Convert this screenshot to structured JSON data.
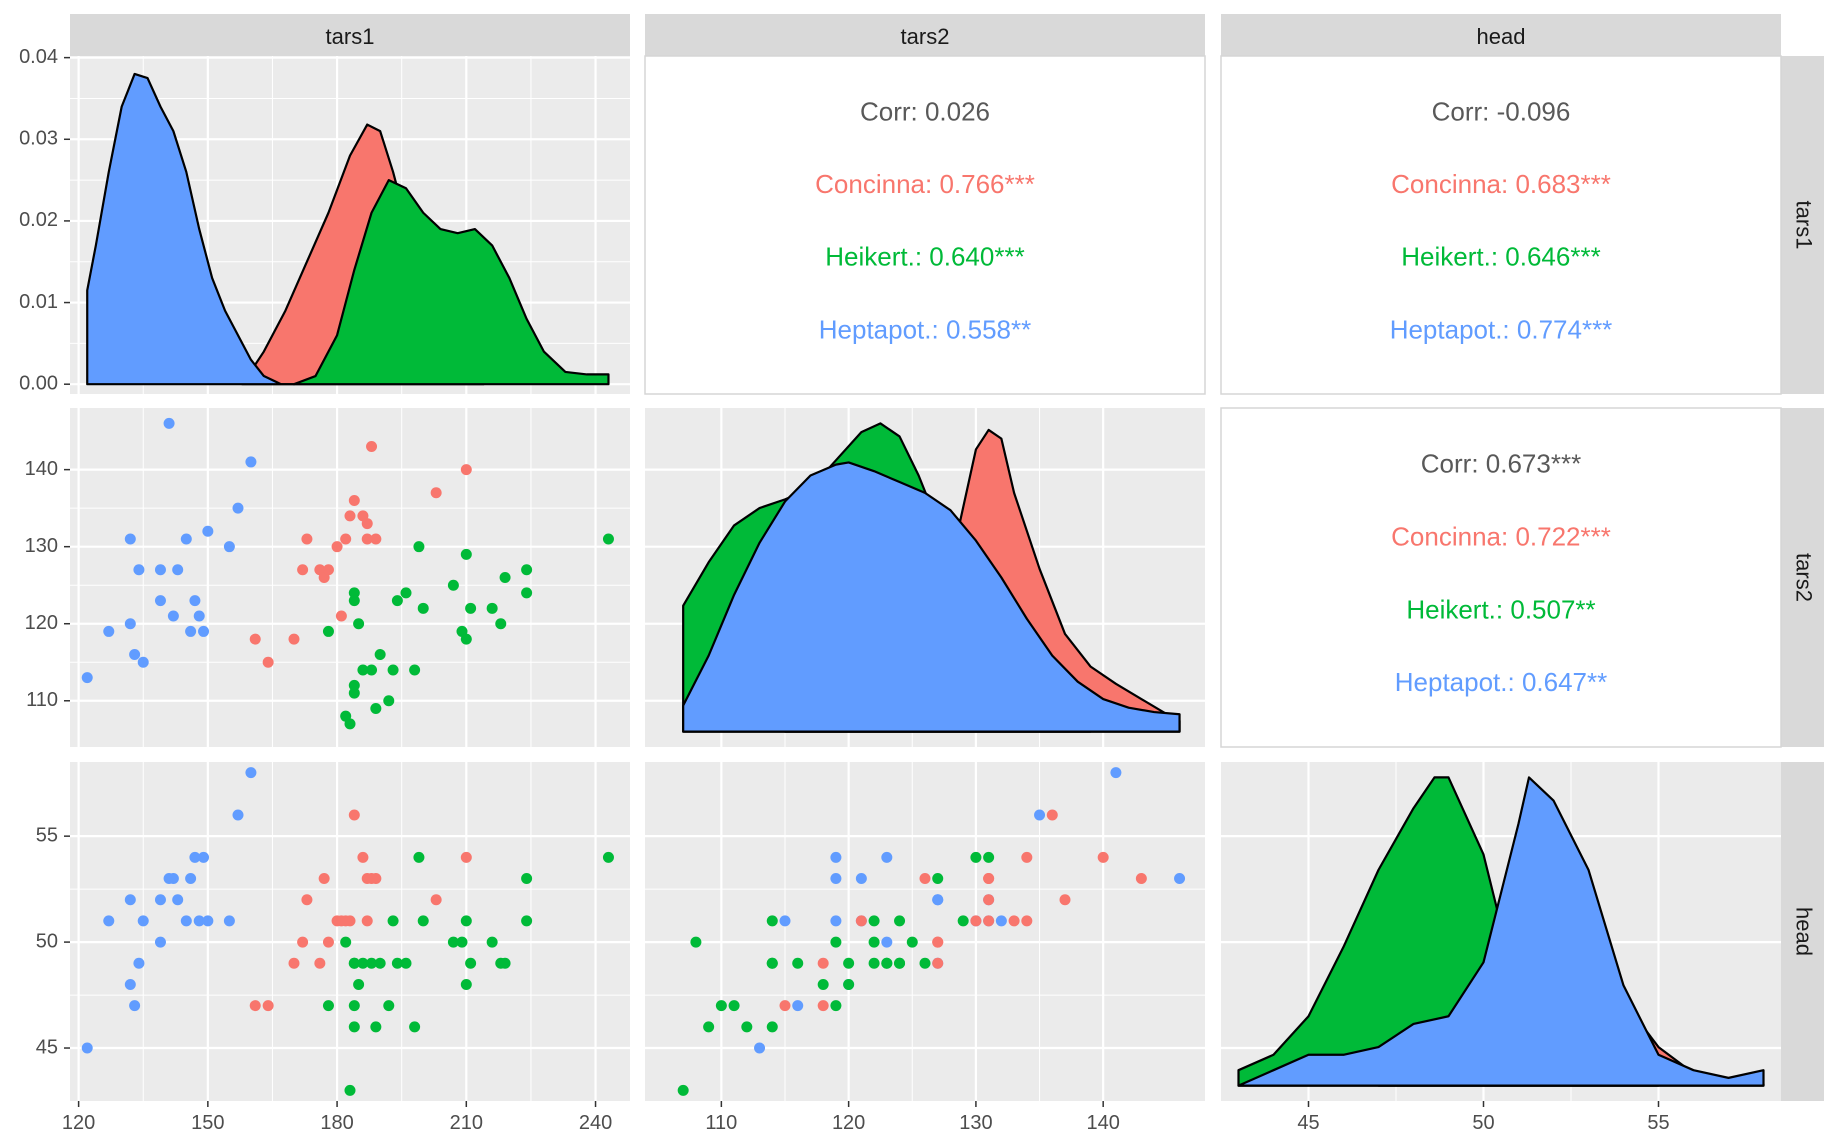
{
  "colors": {
    "concinna": "#F8766D",
    "heikert": "#00BA38",
    "heptapot": "#619CFF",
    "overall": "#595959",
    "panel_bg": "#EBEBEB",
    "strip_bg": "#D9D9D9",
    "grid": "#FFFFFF"
  },
  "chart_data": {
    "type": "scatter",
    "variables": [
      "tars1",
      "tars2",
      "head"
    ],
    "strips": {
      "top": [
        "tars1",
        "tars2",
        "head"
      ],
      "right": [
        "tars1",
        "tars2",
        "head"
      ]
    },
    "groups": [
      "Concinna",
      "Heikert.",
      "Heptapot."
    ],
    "axes": {
      "tars1": {
        "range": [
          118,
          248
        ],
        "ticks": [
          120,
          150,
          180,
          210,
          240
        ]
      },
      "tars2": {
        "range": [
          104,
          148
        ],
        "ticks": [
          110,
          120,
          130,
          140
        ]
      },
      "head": {
        "range": [
          42.5,
          58.5
        ],
        "ticks": [
          45,
          50,
          55
        ]
      }
    },
    "density_yaxis": {
      "range": [
        -0.0012,
        0.0402
      ],
      "ticks": [
        "0.00",
        "0.01",
        "0.02",
        "0.03",
        "0.04"
      ],
      "tick_values": [
        0,
        0.01,
        0.02,
        0.03,
        0.04
      ]
    },
    "correlations": [
      {
        "pair": [
          "tars1",
          "tars2"
        ],
        "lines": [
          {
            "text": "Corr: 0.026",
            "group": "overall"
          },
          {
            "text": "Concinna: 0.766***",
            "group": "concinna"
          },
          {
            "text": "Heikert.: 0.640***",
            "group": "heikert"
          },
          {
            "text": "Heptapot.: 0.558**",
            "group": "heptapot"
          }
        ]
      },
      {
        "pair": [
          "tars1",
          "head"
        ],
        "lines": [
          {
            "text": "Corr: -0.096",
            "group": "overall"
          },
          {
            "text": "Concinna: 0.683***",
            "group": "concinna"
          },
          {
            "text": "Heikert.: 0.646***",
            "group": "heikert"
          },
          {
            "text": "Heptapot.: 0.774***",
            "group": "heptapot"
          }
        ]
      },
      {
        "pair": [
          "tars2",
          "head"
        ],
        "lines": [
          {
            "text": "Corr: 0.673***",
            "group": "overall"
          },
          {
            "text": "Concinna: 0.722***",
            "group": "concinna"
          },
          {
            "text": "Heikert.: 0.507**",
            "group": "heikert"
          },
          {
            "text": "Heptapot.: 0.647**",
            "group": "heptapot"
          }
        ]
      }
    ],
    "densities": {
      "tars1": {
        "concinna": [
          [
            158,
            0
          ],
          [
            163,
            0.004
          ],
          [
            168,
            0.009
          ],
          [
            173,
            0.015
          ],
          [
            178,
            0.021
          ],
          [
            183,
            0.028
          ],
          [
            187,
            0.0318
          ],
          [
            190,
            0.031
          ],
          [
            193,
            0.026
          ],
          [
            196,
            0.02
          ],
          [
            200,
            0.012
          ],
          [
            205,
            0.006
          ],
          [
            210,
            0.002
          ],
          [
            214,
            0
          ]
        ],
        "heikert": [
          [
            170,
            0
          ],
          [
            175,
            0.001
          ],
          [
            180,
            0.006
          ],
          [
            184,
            0.014
          ],
          [
            188,
            0.021
          ],
          [
            192,
            0.025
          ],
          [
            196,
            0.024
          ],
          [
            200,
            0.021
          ],
          [
            204,
            0.019
          ],
          [
            208,
            0.0185
          ],
          [
            212,
            0.019
          ],
          [
            216,
            0.017
          ],
          [
            220,
            0.013
          ],
          [
            224,
            0.008
          ],
          [
            228,
            0.004
          ],
          [
            233,
            0.0015
          ],
          [
            238,
            0.0012
          ],
          [
            243,
            0.0012
          ]
        ],
        "heptapot": [
          [
            122,
            0.0115
          ],
          [
            124,
            0.017
          ],
          [
            127,
            0.026
          ],
          [
            130,
            0.034
          ],
          [
            133,
            0.038
          ],
          [
            136,
            0.0375
          ],
          [
            139,
            0.034
          ],
          [
            142,
            0.031
          ],
          [
            145,
            0.026
          ],
          [
            148,
            0.019
          ],
          [
            151,
            0.013
          ],
          [
            154,
            0.009
          ],
          [
            157,
            0.006
          ],
          [
            160,
            0.003
          ],
          [
            163,
            0.001
          ],
          [
            167,
            0
          ],
          [
            170,
            0
          ]
        ]
      },
      "tars2": {
        "concinna": [
          [
            115,
            0
          ],
          [
            118,
            0.002
          ],
          [
            121,
            0.004
          ],
          [
            124,
            0.0065
          ],
          [
            127,
            0.0075
          ],
          [
            128.5,
            0.009
          ],
          [
            130,
            0.013
          ],
          [
            131,
            0.0139
          ],
          [
            132,
            0.0135
          ],
          [
            133,
            0.011
          ],
          [
            135,
            0.0075
          ],
          [
            137,
            0.0045
          ],
          [
            139,
            0.003
          ],
          [
            141,
            0.0022
          ],
          [
            143,
            0.0015
          ],
          [
            145,
            0.0008
          ],
          [
            146,
            0.0005
          ]
        ],
        "heikert": [
          [
            107,
            0.0058
          ],
          [
            109,
            0.0078
          ],
          [
            111,
            0.0095
          ],
          [
            113,
            0.0103
          ],
          [
            115,
            0.0107
          ],
          [
            117,
            0.0112
          ],
          [
            119,
            0.0125
          ],
          [
            121,
            0.0138
          ],
          [
            122.5,
            0.0142
          ],
          [
            124,
            0.0136
          ],
          [
            125.5,
            0.0118
          ],
          [
            127,
            0.0096
          ],
          [
            129,
            0.0073
          ],
          [
            131,
            0.0052
          ],
          [
            133,
            0.0035
          ],
          [
            135,
            0.002
          ],
          [
            137,
            0.0009
          ],
          [
            139,
            0
          ]
        ],
        "heptapot": [
          [
            107,
            0.0012
          ],
          [
            109,
            0.0035
          ],
          [
            111,
            0.0063
          ],
          [
            113,
            0.0087
          ],
          [
            115,
            0.0106
          ],
          [
            117,
            0.0118
          ],
          [
            119,
            0.0123
          ],
          [
            120,
            0.0124
          ],
          [
            122,
            0.012
          ],
          [
            124,
            0.0115
          ],
          [
            126,
            0.011
          ],
          [
            128,
            0.0102
          ],
          [
            130,
            0.0088
          ],
          [
            132,
            0.0071
          ],
          [
            134,
            0.0052
          ],
          [
            136,
            0.0035
          ],
          [
            138,
            0.0023
          ],
          [
            140,
            0.0015
          ],
          [
            142,
            0.0011
          ],
          [
            144,
            0.0009
          ],
          [
            146,
            0.0008
          ]
        ]
      },
      "head": {
        "concinna": [
          [
            47,
            0
          ],
          [
            48,
            0.008
          ],
          [
            49,
            0.02
          ],
          [
            50,
            0.05
          ],
          [
            50.6,
            0.085
          ],
          [
            51,
            0.1
          ],
          [
            52,
            0.11
          ],
          [
            53,
            0.09
          ],
          [
            54,
            0.055
          ],
          [
            55,
            0.025
          ],
          [
            56,
            0.008
          ],
          [
            57,
            0.003
          ],
          [
            58,
            0.001
          ]
        ],
        "heikert": [
          [
            43,
            0.01
          ],
          [
            44,
            0.02
          ],
          [
            45,
            0.045
          ],
          [
            46,
            0.09
          ],
          [
            47,
            0.14
          ],
          [
            48,
            0.18
          ],
          [
            48.6,
            0.2
          ],
          [
            49,
            0.2
          ],
          [
            50,
            0.15
          ],
          [
            50.6,
            0.095
          ],
          [
            51,
            0.07
          ],
          [
            52,
            0.025
          ],
          [
            53,
            0.008
          ],
          [
            54,
            0.002
          ],
          [
            55,
            0
          ]
        ],
        "heptapot": [
          [
            43,
            0.0
          ],
          [
            44,
            0.01
          ],
          [
            45,
            0.02
          ],
          [
            46,
            0.02
          ],
          [
            47,
            0.025
          ],
          [
            48,
            0.04
          ],
          [
            49,
            0.045
          ],
          [
            50,
            0.08
          ],
          [
            51,
            0.17
          ],
          [
            51.3,
            0.2
          ],
          [
            52,
            0.185
          ],
          [
            53,
            0.14
          ],
          [
            54,
            0.065
          ],
          [
            55,
            0.02
          ],
          [
            56,
            0.01
          ],
          [
            57,
            0.005
          ],
          [
            58,
            0.01
          ]
        ]
      }
    },
    "points": [
      {
        "group": "heptapot",
        "tars1": 122,
        "tars2": 113,
        "head": 45
      },
      {
        "group": "heptapot",
        "tars1": 127,
        "tars2": 119,
        "head": 51
      },
      {
        "group": "heptapot",
        "tars1": 132,
        "tars2": 131,
        "head": 52
      },
      {
        "group": "heptapot",
        "tars1": 132,
        "tars2": 120,
        "head": 48
      },
      {
        "group": "heptapot",
        "tars1": 133,
        "tars2": 116,
        "head": 47
      },
      {
        "group": "heptapot",
        "tars1": 134,
        "tars2": 127,
        "head": 49
      },
      {
        "group": "heptapot",
        "tars1": 135,
        "tars2": 115,
        "head": 51
      },
      {
        "group": "heptapot",
        "tars1": 139,
        "tars2": 123,
        "head": 50
      },
      {
        "group": "heptapot",
        "tars1": 139,
        "tars2": 127,
        "head": 52
      },
      {
        "group": "heptapot",
        "tars1": 141,
        "tars2": 146,
        "head": 53
      },
      {
        "group": "heptapot",
        "tars1": 142,
        "tars2": 121,
        "head": 53
      },
      {
        "group": "heptapot",
        "tars1": 143,
        "tars2": 127,
        "head": 52
      },
      {
        "group": "heptapot",
        "tars1": 145,
        "tars2": 131,
        "head": 51
      },
      {
        "group": "heptapot",
        "tars1": 146,
        "tars2": 119,
        "head": 53
      },
      {
        "group": "heptapot",
        "tars1": 147,
        "tars2": 123,
        "head": 54
      },
      {
        "group": "heptapot",
        "tars1": 148,
        "tars2": 121,
        "head": 51
      },
      {
        "group": "heptapot",
        "tars1": 149,
        "tars2": 119,
        "head": 54
      },
      {
        "group": "heptapot",
        "tars1": 150,
        "tars2": 132,
        "head": 51
      },
      {
        "group": "heptapot",
        "tars1": 155,
        "tars2": 130,
        "head": 51
      },
      {
        "group": "heptapot",
        "tars1": 157,
        "tars2": 135,
        "head": 56
      },
      {
        "group": "heptapot",
        "tars1": 160,
        "tars2": 141,
        "head": 58
      },
      {
        "group": "concinna",
        "tars1": 161,
        "tars2": 118,
        "head": 47
      },
      {
        "group": "concinna",
        "tars1": 164,
        "tars2": 115,
        "head": 47
      },
      {
        "group": "concinna",
        "tars1": 170,
        "tars2": 118,
        "head": 49
      },
      {
        "group": "concinna",
        "tars1": 172,
        "tars2": 127,
        "head": 50
      },
      {
        "group": "concinna",
        "tars1": 173,
        "tars2": 131,
        "head": 52
      },
      {
        "group": "concinna",
        "tars1": 176,
        "tars2": 127,
        "head": 49
      },
      {
        "group": "concinna",
        "tars1": 177,
        "tars2": 126,
        "head": 53
      },
      {
        "group": "concinna",
        "tars1": 180,
        "tars2": 130,
        "head": 51
      },
      {
        "group": "concinna",
        "tars1": 181,
        "tars2": 121,
        "head": 51
      },
      {
        "group": "concinna",
        "tars1": 183,
        "tars2": 134,
        "head": 51
      },
      {
        "group": "concinna",
        "tars1": 184,
        "tars2": 136,
        "head": 56
      },
      {
        "group": "concinna",
        "tars1": 186,
        "tars2": 134,
        "head": 54
      },
      {
        "group": "concinna",
        "tars1": 187,
        "tars2": 133,
        "head": 51
      },
      {
        "group": "concinna",
        "tars1": 188,
        "tars2": 143,
        "head": 53
      },
      {
        "group": "concinna",
        "tars1": 189,
        "tars2": 131,
        "head": 53
      },
      {
        "group": "concinna",
        "tars1": 187,
        "tars2": 131,
        "head": 53
      },
      {
        "group": "concinna",
        "tars1": 182,
        "tars2": 131,
        "head": 51
      },
      {
        "group": "concinna",
        "tars1": 203,
        "tars2": 137,
        "head": 52
      },
      {
        "group": "concinna",
        "tars1": 210,
        "tars2": 140,
        "head": 54
      },
      {
        "group": "concinna",
        "tars1": 178,
        "tars2": 127,
        "head": 50
      },
      {
        "group": "heikert",
        "tars1": 178,
        "tars2": 119,
        "head": 47
      },
      {
        "group": "heikert",
        "tars1": 183,
        "tars2": 107,
        "head": 43
      },
      {
        "group": "heikert",
        "tars1": 184,
        "tars2": 124,
        "head": 49
      },
      {
        "group": "heikert",
        "tars1": 184,
        "tars2": 123,
        "head": 49
      },
      {
        "group": "heikert",
        "tars1": 185,
        "tars2": 120,
        "head": 48
      },
      {
        "group": "heikert",
        "tars1": 186,
        "tars2": 114,
        "head": 49
      },
      {
        "group": "heikert",
        "tars1": 184,
        "tars2": 112,
        "head": 46
      },
      {
        "group": "heikert",
        "tars1": 184,
        "tars2": 111,
        "head": 47
      },
      {
        "group": "heikert",
        "tars1": 182,
        "tars2": 108,
        "head": 50
      },
      {
        "group": "heikert",
        "tars1": 189,
        "tars2": 109,
        "head": 46
      },
      {
        "group": "heikert",
        "tars1": 190,
        "tars2": 116,
        "head": 49
      },
      {
        "group": "heikert",
        "tars1": 192,
        "tars2": 110,
        "head": 47
      },
      {
        "group": "heikert",
        "tars1": 193,
        "tars2": 114,
        "head": 51
      },
      {
        "group": "heikert",
        "tars1": 196,
        "tars2": 124,
        "head": 49
      },
      {
        "group": "heikert",
        "tars1": 198,
        "tars2": 114,
        "head": 46
      },
      {
        "group": "heikert",
        "tars1": 199,
        "tars2": 130,
        "head": 54
      },
      {
        "group": "heikert",
        "tars1": 200,
        "tars2": 122,
        "head": 51
      },
      {
        "group": "heikert",
        "tars1": 207,
        "tars2": 125,
        "head": 50
      },
      {
        "group": "heikert",
        "tars1": 209,
        "tars2": 119,
        "head": 50
      },
      {
        "group": "heikert",
        "tars1": 210,
        "tars2": 118,
        "head": 48
      },
      {
        "group": "heikert",
        "tars1": 210,
        "tars2": 129,
        "head": 51
      },
      {
        "group": "heikert",
        "tars1": 211,
        "tars2": 122,
        "head": 49
      },
      {
        "group": "heikert",
        "tars1": 216,
        "tars2": 122,
        "head": 50
      },
      {
        "group": "heikert",
        "tars1": 218,
        "tars2": 120,
        "head": 49
      },
      {
        "group": "heikert",
        "tars1": 219,
        "tars2": 126,
        "head": 49
      },
      {
        "group": "heikert",
        "tars1": 224,
        "tars2": 127,
        "head": 53
      },
      {
        "group": "heikert",
        "tars1": 224,
        "tars2": 124,
        "head": 51
      },
      {
        "group": "heikert",
        "tars1": 243,
        "tars2": 131,
        "head": 54
      },
      {
        "group": "heikert",
        "tars1": 194,
        "tars2": 123,
        "head": 49
      },
      {
        "group": "heikert",
        "tars1": 188,
        "tars2": 114,
        "head": 49
      }
    ]
  }
}
